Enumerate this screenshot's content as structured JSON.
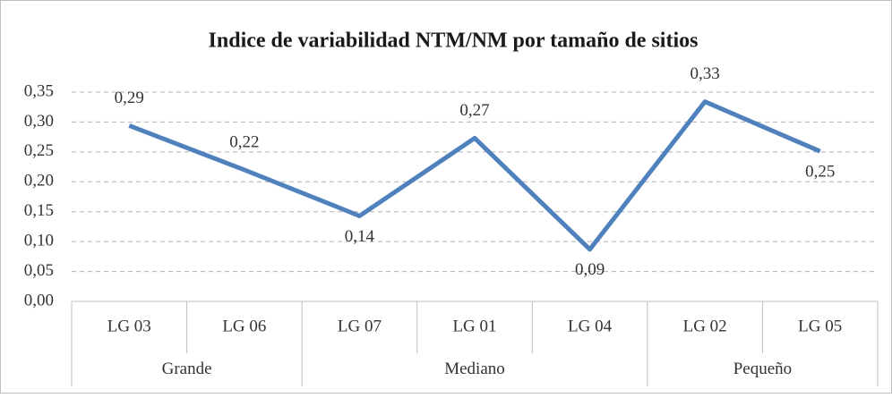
{
  "chart_data": {
    "type": "line",
    "title": "Indice de variabilidad NTM/NM por tamaño de sitios",
    "categories": [
      "LG 03",
      "LG 06",
      "LG 07",
      "LG 01",
      "LG 04",
      "LG 02",
      "LG 05"
    ],
    "groups": [
      {
        "label": "Grande",
        "size": 2
      },
      {
        "label": "Mediano",
        "size": 3
      },
      {
        "label": "Pequeño",
        "size": 2
      }
    ],
    "series": [
      {
        "name": "Indice",
        "color": "#4f81bd",
        "values": [
          0.294,
          0.22,
          0.143,
          0.273,
          0.087,
          0.334,
          0.251
        ],
        "value_labels": [
          "0,29",
          "0,22",
          "0,14",
          "0,27",
          "0,09",
          "0,33",
          "0,25"
        ]
      }
    ],
    "ylim": [
      0,
      0.35
    ],
    "yticks": [
      {
        "value": 0,
        "label": "0,00"
      },
      {
        "value": 0.05,
        "label": "0,05"
      },
      {
        "value": 0.1,
        "label": "0,10"
      },
      {
        "value": 0.15,
        "label": "0,15"
      },
      {
        "value": 0.2,
        "label": "0,20"
      },
      {
        "value": 0.25,
        "label": "0,25"
      },
      {
        "value": 0.3,
        "label": "0,30"
      },
      {
        "value": 0.35,
        "label": "0,35"
      }
    ],
    "grid": true
  }
}
